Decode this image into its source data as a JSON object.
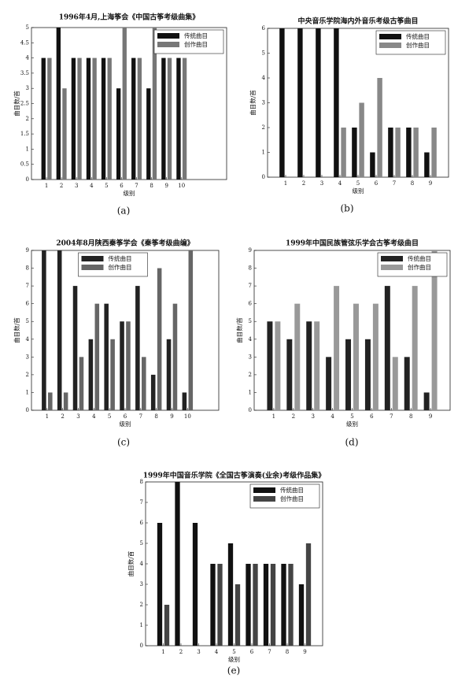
{
  "chart_data": [
    {
      "type": "bar",
      "title": "1996年4月,上海筝会《中国古筝考级曲集》",
      "caption": "(a)",
      "xlabel": "级别",
      "ylabel": "曲目数/首",
      "x": [
        1,
        2,
        3,
        4,
        5,
        6,
        7,
        8,
        9,
        10
      ],
      "xlim": [
        0,
        13
      ],
      "xticks": [
        1,
        2,
        3,
        4,
        5,
        6,
        7,
        8,
        9,
        10
      ],
      "ylim": [
        0,
        5
      ],
      "yticks": [
        0,
        0.5,
        1,
        1.5,
        2,
        2.5,
        3,
        3.5,
        4,
        4.5,
        5
      ],
      "legend": "upper right",
      "series": [
        {
          "name": "传统曲目",
          "color": "#111111",
          "values": [
            4,
            5,
            4,
            4,
            4,
            3,
            4,
            3,
            4,
            4
          ]
        },
        {
          "name": "创作曲目",
          "color": "#777777",
          "values": [
            4,
            3,
            4,
            4,
            4,
            5,
            4,
            5,
            4,
            4
          ]
        }
      ]
    },
    {
      "type": "bar",
      "title": "中央音乐学院海内外音乐考级古筝曲目",
      "caption": "(b)",
      "xlabel": "级别",
      "ylabel": "曲目数/首",
      "x": [
        1,
        2,
        3,
        4,
        5,
        6,
        7,
        8,
        9
      ],
      "xlim": [
        0,
        10
      ],
      "xticks": [
        1,
        2,
        3,
        4,
        5,
        6,
        7,
        8,
        9
      ],
      "ylim": [
        0,
        6
      ],
      "yticks": [
        0,
        1,
        2,
        3,
        4,
        5,
        6
      ],
      "legend": "upper right",
      "series": [
        {
          "name": "传统曲目",
          "color": "#111111",
          "values": [
            6,
            6,
            6,
            6,
            2,
            1,
            2,
            2,
            1
          ]
        },
        {
          "name": "创作曲目",
          "color": "#888888",
          "values": [
            0,
            0,
            0,
            2,
            3,
            4,
            2,
            2,
            2
          ]
        }
      ]
    },
    {
      "type": "bar",
      "title": "2004年8月陕西秦筝学会《秦筝考级曲编》",
      "caption": "(c)",
      "xlabel": "级别",
      "ylabel": "曲目数/首",
      "x": [
        1,
        2,
        3,
        4,
        5,
        6,
        7,
        8,
        9,
        10
      ],
      "xlim": [
        0,
        12
      ],
      "xticks": [
        1,
        2,
        3,
        4,
        5,
        6,
        7,
        8,
        9,
        10
      ],
      "ylim": [
        0,
        9
      ],
      "yticks": [
        0,
        1,
        2,
        3,
        4,
        5,
        6,
        7,
        8,
        9
      ],
      "legend": "upper center",
      "series": [
        {
          "name": "传统曲目",
          "color": "#222222",
          "values": [
            9,
            9,
            7,
            4,
            6,
            5,
            7,
            2,
            4,
            1
          ]
        },
        {
          "name": "创作曲目",
          "color": "#666666",
          "values": [
            1,
            1,
            3,
            6,
            4,
            5,
            3,
            8,
            6,
            9
          ]
        }
      ]
    },
    {
      "type": "bar",
      "title": "1999年中国民族管弦乐学会古筝考级曲目",
      "caption": "(d)",
      "xlabel": "级别",
      "ylabel": "曲目数/首",
      "x": [
        1,
        2,
        3,
        4,
        5,
        6,
        7,
        8,
        9
      ],
      "xlim": [
        0,
        10
      ],
      "xticks": [
        1,
        2,
        3,
        4,
        5,
        6,
        7,
        8,
        9
      ],
      "ylim": [
        0,
        9
      ],
      "yticks": [
        0,
        1,
        2,
        3,
        4,
        5,
        6,
        7,
        8,
        9
      ],
      "legend": "upper right",
      "series": [
        {
          "name": "传统曲目",
          "color": "#222222",
          "values": [
            5,
            4,
            5,
            3,
            4,
            4,
            7,
            3,
            1
          ]
        },
        {
          "name": "创作曲目",
          "color": "#999999",
          "values": [
            5,
            6,
            5,
            7,
            6,
            6,
            3,
            7,
            9
          ]
        }
      ]
    },
    {
      "type": "bar",
      "title": "1999年中国音乐学院《全国古筝演奏(业余)考级作品集》",
      "caption": "(e)",
      "xlabel": "级别",
      "ylabel": "曲目数/首",
      "x": [
        1,
        2,
        3,
        4,
        5,
        6,
        7,
        8,
        9
      ],
      "xlim": [
        0,
        10
      ],
      "xticks": [
        1,
        2,
        3,
        4,
        5,
        6,
        7,
        8,
        9
      ],
      "ylim": [
        0,
        8
      ],
      "yticks": [
        0,
        1,
        2,
        3,
        4,
        5,
        6,
        7,
        8
      ],
      "legend": "upper right",
      "series": [
        {
          "name": "传统曲目",
          "color": "#111111",
          "values": [
            6,
            8,
            6,
            4,
            5,
            4,
            4,
            4,
            3
          ]
        },
        {
          "name": "创作曲目",
          "color": "#444444",
          "values": [
            2,
            0,
            0,
            4,
            3,
            4,
            4,
            4,
            5
          ]
        }
      ]
    }
  ]
}
